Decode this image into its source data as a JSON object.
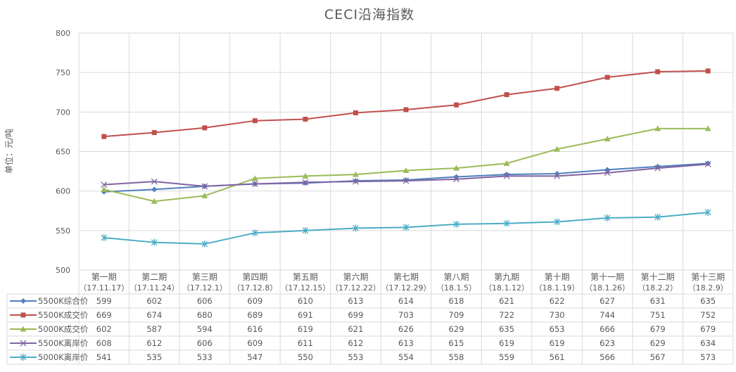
{
  "chart_data": {
    "type": "line",
    "title": "CECI沿海指数",
    "ylabel": "单位：元/吨",
    "xlabel": "",
    "ylim": [
      500,
      800
    ],
    "yticks": [
      500,
      550,
      600,
      650,
      700,
      750,
      800
    ],
    "grid": true,
    "legend_placement": "data-table",
    "categories": [
      {
        "name": "第一期",
        "date": "（17.11.17）"
      },
      {
        "name": "第二期",
        "date": "（17.11.24）"
      },
      {
        "name": "第三期",
        "date": "（17.12.1）"
      },
      {
        "name": "第四期",
        "date": "（17.12.8）"
      },
      {
        "name": "第五期",
        "date": "（17.12.15）"
      },
      {
        "name": "第六期",
        "date": "（17.12.22）"
      },
      {
        "name": "第七期",
        "date": "（17.12.29）"
      },
      {
        "name": "第八期",
        "date": "（18.1.5）"
      },
      {
        "name": "第九期",
        "date": "（18.1.12）"
      },
      {
        "name": "第十期",
        "date": "（18.1.19）"
      },
      {
        "name": "第十一期",
        "date": "（18.1.26）"
      },
      {
        "name": "第十二期",
        "date": "（18.2.2）"
      },
      {
        "name": "第十三期",
        "date": "（18.2.9）"
      }
    ],
    "series": [
      {
        "name": "5500K综合价",
        "color": "#4f81bd",
        "marker": "diamond",
        "values": [
          599,
          602,
          606,
          609,
          610,
          613,
          614,
          618,
          621,
          622,
          627,
          631,
          635
        ]
      },
      {
        "name": "5500K成交价",
        "color": "#c0504d",
        "marker": "square",
        "values": [
          669,
          674,
          680,
          689,
          691,
          699,
          703,
          709,
          722,
          730,
          744,
          751,
          752
        ]
      },
      {
        "name": "5000K成交价",
        "color": "#9bbb59",
        "marker": "triangle",
        "values": [
          602,
          587,
          594,
          616,
          619,
          621,
          626,
          629,
          635,
          653,
          666,
          679,
          679
        ]
      },
      {
        "name": "5500K离岸价",
        "color": "#8064a2",
        "marker": "x",
        "values": [
          608,
          612,
          606,
          609,
          611,
          612,
          613,
          615,
          619,
          619,
          623,
          629,
          634
        ]
      },
      {
        "name": "5000K离岸价",
        "color": "#4bacc6",
        "marker": "star",
        "values": [
          541,
          535,
          533,
          547,
          550,
          553,
          554,
          558,
          559,
          561,
          566,
          567,
          573
        ]
      }
    ]
  }
}
